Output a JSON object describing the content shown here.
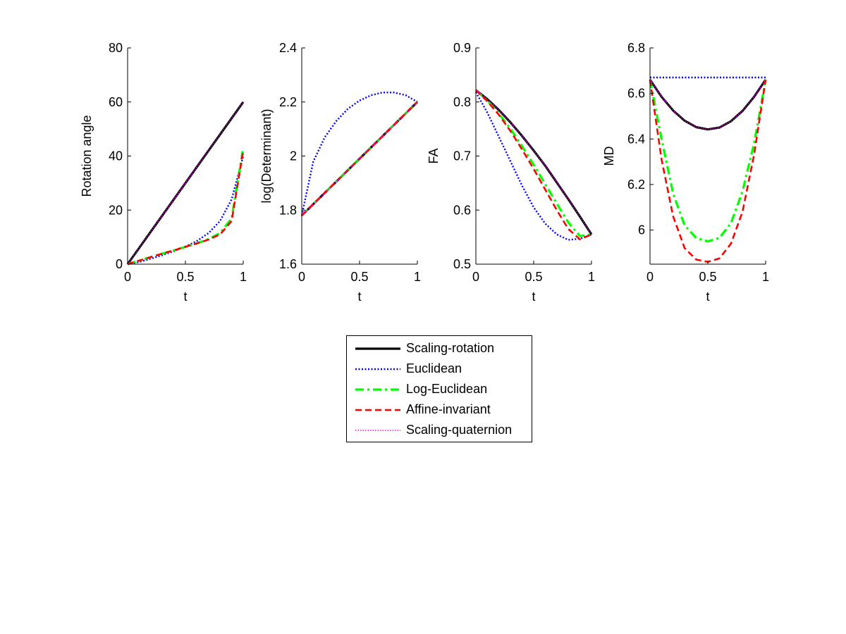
{
  "legend": [
    {
      "label": "Scaling-rotation",
      "color": "#000000",
      "style": "solid"
    },
    {
      "label": "Euclidean",
      "color": "#0000ff",
      "style": "dotted"
    },
    {
      "label": "Log-Euclidean",
      "color": "#00ff00",
      "style": "dashdot"
    },
    {
      "label": "Affine-invariant",
      "color": "#ff0000",
      "style": "dashed"
    },
    {
      "label": "Scaling-quaternion",
      "color": "#ff00ff",
      "style": "fineDotted"
    }
  ],
  "chart_data": [
    {
      "type": "line",
      "xlabel": "t",
      "ylabel": "Rotation angle",
      "xlim": [
        0,
        1
      ],
      "ylim": [
        0,
        80
      ],
      "xticks": [
        "0",
        "0.5",
        "1"
      ],
      "yticks": [
        "0",
        "20",
        "40",
        "60",
        "80"
      ],
      "x": [
        0,
        0.1,
        0.2,
        0.3,
        0.4,
        0.5,
        0.6,
        0.7,
        0.8,
        0.9,
        1.0
      ],
      "series": [
        {
          "name": "Scaling-rotation",
          "values": [
            0,
            6,
            12,
            18,
            24,
            30,
            36,
            42,
            48,
            54,
            60
          ]
        },
        {
          "name": "Euclidean",
          "values": [
            0,
            0.8,
            2.0,
            3.3,
            4.8,
            6.5,
            8.6,
            11.5,
            16,
            24,
            40
          ]
        },
        {
          "name": "Log-Euclidean",
          "values": [
            0,
            1.3,
            2.6,
            3.9,
            5.1,
            6.4,
            7.7,
            9.3,
            11.5,
            17,
            43
          ]
        },
        {
          "name": "Affine-invariant",
          "values": [
            0,
            1.3,
            2.6,
            3.9,
            5.1,
            6.4,
            7.7,
            9.1,
            11.0,
            16,
            42
          ]
        },
        {
          "name": "Scaling-quaternion",
          "values": [
            0,
            6,
            12,
            18,
            24,
            30,
            36,
            42,
            48,
            54,
            60
          ]
        }
      ]
    },
    {
      "type": "line",
      "xlabel": "t",
      "ylabel": "log(Determinant)",
      "xlim": [
        0,
        1
      ],
      "ylim": [
        1.6,
        2.4
      ],
      "xticks": [
        "0",
        "0.5",
        "1"
      ],
      "yticks": [
        "1.6",
        "1.8",
        "2",
        "2.2",
        "2.4"
      ],
      "x": [
        0,
        0.1,
        0.2,
        0.3,
        0.4,
        0.5,
        0.6,
        0.7,
        0.8,
        0.9,
        1.0
      ],
      "series": [
        {
          "name": "Scaling-rotation",
          "values": [
            1.78,
            1.822,
            1.864,
            1.906,
            1.948,
            1.99,
            2.032,
            2.074,
            2.116,
            2.158,
            2.2
          ]
        },
        {
          "name": "Euclidean",
          "values": [
            1.78,
            1.98,
            2.07,
            2.13,
            2.175,
            2.205,
            2.225,
            2.235,
            2.235,
            2.225,
            2.2
          ]
        },
        {
          "name": "Log-Euclidean",
          "values": [
            1.78,
            1.822,
            1.864,
            1.906,
            1.948,
            1.99,
            2.032,
            2.074,
            2.116,
            2.158,
            2.2
          ]
        },
        {
          "name": "Affine-invariant",
          "values": [
            1.78,
            1.822,
            1.864,
            1.906,
            1.948,
            1.99,
            2.032,
            2.074,
            2.116,
            2.158,
            2.2
          ]
        },
        {
          "name": "Scaling-quaternion",
          "values": [
            1.78,
            1.822,
            1.864,
            1.906,
            1.948,
            1.99,
            2.032,
            2.074,
            2.116,
            2.158,
            2.2
          ]
        }
      ]
    },
    {
      "type": "line",
      "xlabel": "t",
      "ylabel": "FA",
      "xlim": [
        0,
        1
      ],
      "ylim": [
        0.5,
        0.9
      ],
      "xticks": [
        "0",
        "0.5",
        "1"
      ],
      "yticks": [
        "0.5",
        "0.6",
        "0.7",
        "0.8",
        "0.9"
      ],
      "x": [
        0,
        0.1,
        0.2,
        0.3,
        0.4,
        0.5,
        0.6,
        0.7,
        0.8,
        0.9,
        1.0
      ],
      "series": [
        {
          "name": "Scaling-rotation",
          "values": [
            0.822,
            0.805,
            0.785,
            0.762,
            0.737,
            0.71,
            0.682,
            0.651,
            0.62,
            0.588,
            0.555
          ]
        },
        {
          "name": "Euclidean",
          "values": [
            0.818,
            0.78,
            0.735,
            0.69,
            0.645,
            0.605,
            0.575,
            0.555,
            0.545,
            0.547,
            0.555
          ]
        },
        {
          "name": "Log-Euclidean",
          "values": [
            0.822,
            0.802,
            0.778,
            0.75,
            0.718,
            0.684,
            0.648,
            0.612,
            0.577,
            0.552,
            0.555
          ]
        },
        {
          "name": "Affine-invariant",
          "values": [
            0.822,
            0.801,
            0.776,
            0.746,
            0.712,
            0.676,
            0.638,
            0.6,
            0.565,
            0.546,
            0.555
          ]
        },
        {
          "name": "Scaling-quaternion",
          "values": [
            0.822,
            0.805,
            0.785,
            0.762,
            0.737,
            0.71,
            0.682,
            0.651,
            0.62,
            0.588,
            0.555
          ]
        }
      ]
    },
    {
      "type": "line",
      "xlabel": "t",
      "ylabel": "MD",
      "xlim": [
        0,
        1
      ],
      "ylim": [
        5.85,
        6.8
      ],
      "xticks": [
        "0",
        "0.5",
        "1"
      ],
      "yticks": [
        "6",
        "6.2",
        "6.4",
        "6.6",
        "6.8"
      ],
      "x": [
        0,
        0.1,
        0.2,
        0.3,
        0.4,
        0.5,
        0.6,
        0.7,
        0.8,
        0.9,
        1.0
      ],
      "series": [
        {
          "name": "Scaling-rotation",
          "values": [
            6.66,
            6.585,
            6.525,
            6.48,
            6.452,
            6.442,
            6.45,
            6.478,
            6.523,
            6.585,
            6.66
          ]
        },
        {
          "name": "Euclidean",
          "values": [
            6.67,
            6.67,
            6.67,
            6.67,
            6.67,
            6.67,
            6.67,
            6.67,
            6.67,
            6.67,
            6.67
          ]
        },
        {
          "name": "Log-Euclidean",
          "values": [
            6.66,
            6.4,
            6.16,
            6.02,
            5.965,
            5.95,
            5.965,
            6.03,
            6.17,
            6.38,
            6.66
          ]
        },
        {
          "name": "Affine-invariant",
          "values": [
            6.66,
            6.31,
            6.06,
            5.92,
            5.87,
            5.86,
            5.875,
            5.94,
            6.08,
            6.33,
            6.66
          ]
        },
        {
          "name": "Scaling-quaternion",
          "values": [
            6.66,
            6.585,
            6.525,
            6.48,
            6.452,
            6.442,
            6.45,
            6.478,
            6.523,
            6.585,
            6.66
          ]
        }
      ]
    }
  ]
}
